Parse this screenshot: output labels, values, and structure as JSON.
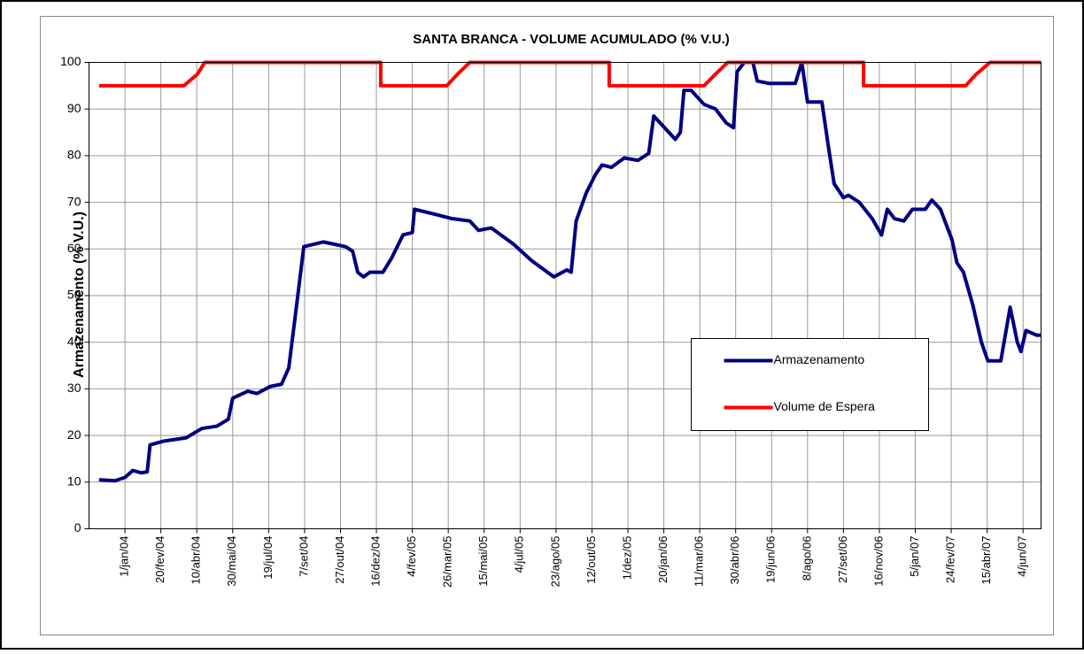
{
  "chart_data": {
    "type": "line",
    "title": "SANTA BRANCA - VOLUME ACUMULADO (% V.U.)",
    "y_label": "Armazenamento (% V.U.)",
    "xlim": [
      "12/nov/03",
      "29/jun/07"
    ],
    "xticks": [
      "1/jan/04",
      "20/fev/04",
      "10/abr/04",
      "30/mai/04",
      "19/jul/04",
      "7/set/04",
      "27/out/04",
      "16/dez/04",
      "4/fev/05",
      "26/mar/05",
      "15/mai/05",
      "4/jul/05",
      "23/ago/05",
      "12/out/05",
      "1/dez/05",
      "20/jan/06",
      "11/mar/06",
      "30/abr/06",
      "19/jun/06",
      "8/ago/06",
      "27/set/06",
      "16/nov/06",
      "5/jan/07",
      "24/fev/07",
      "15/abr/07",
      "4/jun/07"
    ],
    "ylim": [
      0,
      100
    ],
    "yticks": [
      0,
      10,
      20,
      30,
      40,
      50,
      60,
      70,
      80,
      90,
      100
    ],
    "grid": true,
    "legend": "right",
    "series": [
      {
        "name": "Armazenamento",
        "color": "#000080",
        "x": [
          "26/nov/03",
          "18/dez/03",
          "1/jan/04",
          "12/jan/04",
          "24/jan/04",
          "1/fev/04",
          "5/fev/04",
          "24/fev/04",
          "26/mar/04",
          "17/abr/04",
          "8/mai/04",
          "24/mai/04",
          "30/mai/04",
          "20/jun/04",
          "3/jul/04",
          "21/jul/04",
          "6/ago/04",
          "16/ago/04",
          "27/ago/04",
          "6/set/04",
          "3/out/04",
          "3/nov/04",
          "13/nov/04",
          "20/nov/04",
          "28/nov/04",
          "7/dez/04",
          "25/dez/04",
          "6/jan/05",
          "22/jan/05",
          "4/fev/05",
          "7/fev/05",
          "6/mar/05",
          "31/mar/05",
          "25/abr/05",
          "7/mai/05",
          "25/mai/05",
          "25/jun/05",
          "20/jul/05",
          "20/ago/05",
          "7/set/05",
          "13/set/05",
          "20/set/05",
          "4/out/05",
          "17/out/05",
          "26/out/05",
          "8/nov/05",
          "26/nov/05",
          "15/dez/05",
          "30/dez/05",
          "6/jan/06",
          "21/jan/06",
          "5/fev/06",
          "12/fev/06",
          "17/fev/06",
          "27/fev/06",
          "17/mar/06",
          "2/abr/06",
          "17/abr/06",
          "27/abr/06",
          "2/mai/06",
          "12/mai/06",
          "24/mai/06",
          "30/mai/06",
          "15/jun/06",
          "6/jul/06",
          "22/jul/06",
          "31/jul/06",
          "8/ago/06",
          "28/ago/06",
          "6/set/06",
          "14/set/06",
          "27/set/06",
          "4/out/06",
          "19/out/06",
          "6/nov/06",
          "19/nov/06",
          "27/nov/06",
          "7/dez/06",
          "20/dez/06",
          "1/jan/07",
          "19/jan/07",
          "28/jan/07",
          "9/fev/07",
          "25/fev/07",
          "4/mar/07",
          "13/mar/07",
          "26/mar/07",
          "7/abr/07",
          "16/abr/07",
          "4/mai/07",
          "17/mai/07",
          "27/mai/07",
          "1/jun/07",
          "8/jun/07",
          "23/jun/07",
          "29/jun/07"
        ],
        "values": [
          10.5,
          10.3,
          11.0,
          12.5,
          12.0,
          12.2,
          18.0,
          18.8,
          19.5,
          21.5,
          22.0,
          23.5,
          28.0,
          29.5,
          29.0,
          30.5,
          31.0,
          34.5,
          48,
          60.5,
          61.5,
          60.5,
          59.5,
          55,
          54.0,
          55,
          55,
          58,
          63,
          63.5,
          68.5,
          67.5,
          66.5,
          66.0,
          64,
          64.5,
          61.0,
          57.5,
          54,
          55.5,
          55.0,
          66,
          72,
          76,
          78,
          77.5,
          79.5,
          79.0,
          80.5,
          88.5,
          86,
          83.5,
          85,
          94,
          94,
          91,
          90,
          87,
          86,
          98,
          100,
          100,
          96,
          95.5,
          95.5,
          95.5,
          100,
          91.5,
          91.5,
          82,
          74,
          71,
          71.5,
          70,
          66.5,
          63,
          68.5,
          66.5,
          66,
          68.5,
          68.5,
          70.5,
          68.5,
          62,
          57,
          55,
          48,
          40,
          36,
          36,
          47.5,
          40,
          38,
          42.5,
          41.5,
          41.5
        ]
      },
      {
        "name": "Volume de Espera",
        "color": "#ff0000",
        "x": [
          "26/nov/03",
          "23/mar/04",
          "11/abr/04",
          "21/abr/04",
          "22/dez/04",
          "22/dez/04",
          "24/mar/05",
          "8/abr/05",
          "25/abr/05",
          "5/nov/05",
          "5/nov/05",
          "17/mar/06",
          "2/abr/06",
          "19/abr/06",
          "25/out/06",
          "25/out/06",
          "16/mar/07",
          "31/mar/07",
          "19/abr/07",
          "29/jun/07"
        ],
        "values": [
          95,
          95,
          97.5,
          100,
          100,
          95,
          95,
          97.5,
          100,
          100,
          95,
          95,
          97.5,
          100,
          100,
          95,
          95,
          97.5,
          100,
          100
        ]
      }
    ]
  }
}
